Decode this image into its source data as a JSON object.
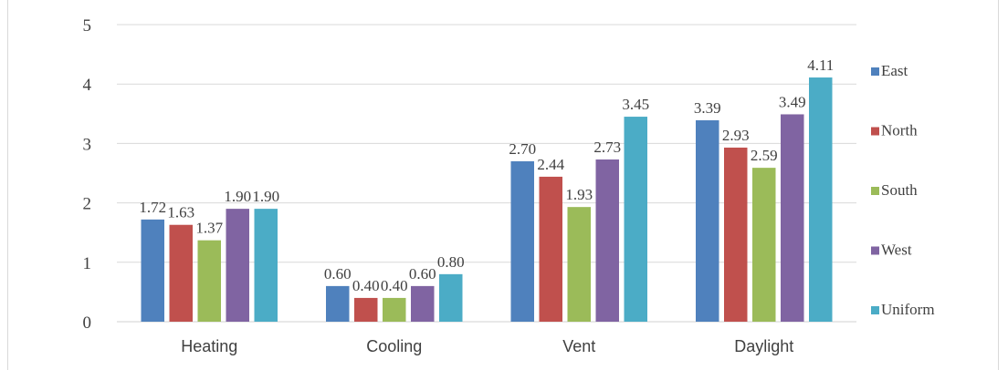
{
  "chart_data": {
    "type": "bar",
    "title": "",
    "xlabel": "",
    "ylabel": "",
    "categories": [
      "Heating",
      "Cooling",
      "Vent",
      "Daylight"
    ],
    "ylim": [
      0,
      5
    ],
    "yticks": [
      "0",
      "1",
      "2",
      "3",
      "4",
      "5"
    ],
    "grid": true,
    "legend_position": "right",
    "series": [
      {
        "name": "East",
        "color": "#4f81bd",
        "values": [
          1.72,
          0.6,
          2.7,
          3.39
        ],
        "labels": [
          "1.72",
          "0.60",
          "2.70",
          "3.39"
        ]
      },
      {
        "name": "North",
        "color": "#c0504d",
        "values": [
          1.63,
          0.4,
          2.44,
          2.93
        ],
        "labels": [
          "1.63",
          "0.40",
          "2.44",
          "2.93"
        ]
      },
      {
        "name": "South",
        "color": "#9bbb59",
        "values": [
          1.37,
          0.4,
          1.93,
          2.59
        ],
        "labels": [
          "1.37",
          "0.40",
          "1.93",
          "2.59"
        ]
      },
      {
        "name": "West",
        "color": "#8064a2",
        "values": [
          1.9,
          0.6,
          2.73,
          3.49
        ],
        "labels": [
          "1.90",
          "0.60",
          "2.73",
          "3.49"
        ]
      },
      {
        "name": "Uniform",
        "color": "#4bacc6",
        "values": [
          1.9,
          0.8,
          3.45,
          4.11
        ],
        "labels": [
          "1.90",
          "0.80",
          "3.45",
          "4.11"
        ]
      }
    ]
  }
}
